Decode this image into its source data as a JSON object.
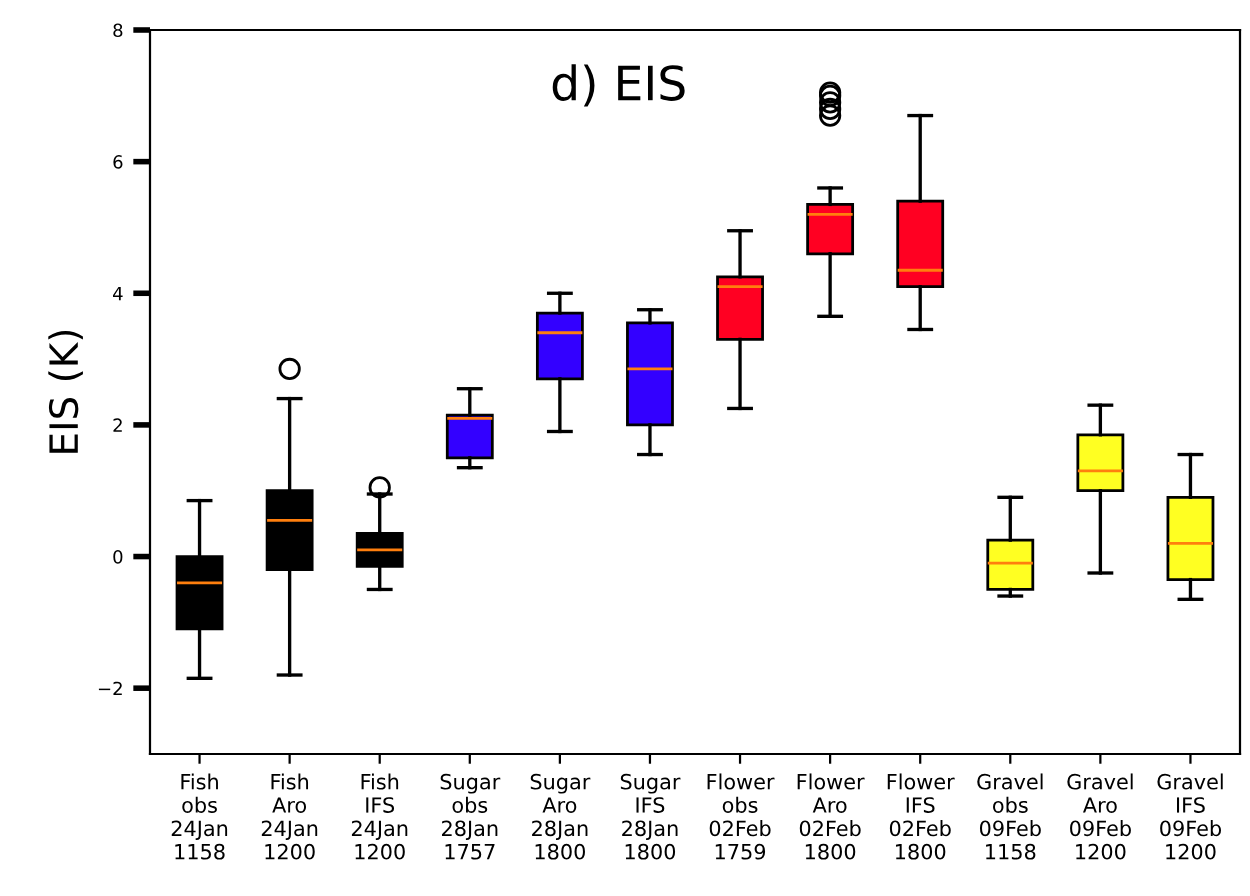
{
  "chart_data": {
    "type": "box",
    "title": "d) EIS",
    "ylabel": "EIS (K)",
    "categories": [
      "Fish\nobs\n24Jan\n1158",
      "Fish\nAro\n24Jan\n1200",
      "Fish\nIFS\n24Jan\n1200",
      "Sugar\nobs\n28Jan\n1757",
      "Sugar\nAro\n28Jan\n1800",
      "Sugar\nIFS\n28Jan\n1800",
      "Flower\nobs\n02Feb\n1759",
      "Flower\nAro\n02Feb\n1800",
      "Flower\nIFS\n02Feb\n1800",
      "Gravel\nobs\n09Feb\n1158",
      "Gravel\nAro\n09Feb\n1200",
      "Gravel\nIFS\n09Feb\n1200"
    ],
    "colors": [
      "#000000",
      "#000000",
      "#000000",
      "#3300ff",
      "#3300ff",
      "#3300ff",
      "#ff0022",
      "#ff0022",
      "#ff0022",
      "#ffff22",
      "#ffff22",
      "#ffff22"
    ],
    "boxes": [
      {
        "low": -1.85,
        "q1": -1.1,
        "median": -0.4,
        "q3": 0.0,
        "high": 0.85
      },
      {
        "low": -1.8,
        "q1": -0.2,
        "median": 0.55,
        "q3": 1.0,
        "high": 2.4,
        "outliers": [
          2.85
        ]
      },
      {
        "low": -0.5,
        "q1": -0.15,
        "median": 0.1,
        "q3": 0.35,
        "high": 0.95,
        "outliers": [
          1.05
        ]
      },
      {
        "low": 1.35,
        "q1": 1.5,
        "median": 2.1,
        "q3": 2.15,
        "high": 2.55
      },
      {
        "low": 1.9,
        "q1": 2.7,
        "median": 3.4,
        "q3": 3.7,
        "high": 4.0
      },
      {
        "low": 1.55,
        "q1": 2.0,
        "median": 2.85,
        "q3": 3.55,
        "high": 3.75
      },
      {
        "low": 2.25,
        "q1": 3.3,
        "median": 4.1,
        "q3": 4.25,
        "high": 4.95
      },
      {
        "low": 3.65,
        "q1": 4.6,
        "median": 5.2,
        "q3": 5.35,
        "high": 5.6,
        "outliers": [
          6.7,
          6.8,
          6.9,
          7.0,
          7.05
        ]
      },
      {
        "low": 3.45,
        "q1": 4.1,
        "median": 4.35,
        "q3": 5.4,
        "high": 6.7
      },
      {
        "low": -0.6,
        "q1": -0.5,
        "median": -0.1,
        "q3": 0.25,
        "high": 0.9
      },
      {
        "low": -0.25,
        "q1": 1.0,
        "median": 1.3,
        "q3": 1.85,
        "high": 2.3
      },
      {
        "low": -0.65,
        "q1": -0.35,
        "median": 0.2,
        "q3": 0.9,
        "high": 1.55
      }
    ],
    "ylim": [
      -3,
      8
    ],
    "yticks": [
      {
        "value": -2,
        "label": "−2"
      },
      0,
      2,
      4,
      6,
      8
    ],
    "grid": false
  }
}
